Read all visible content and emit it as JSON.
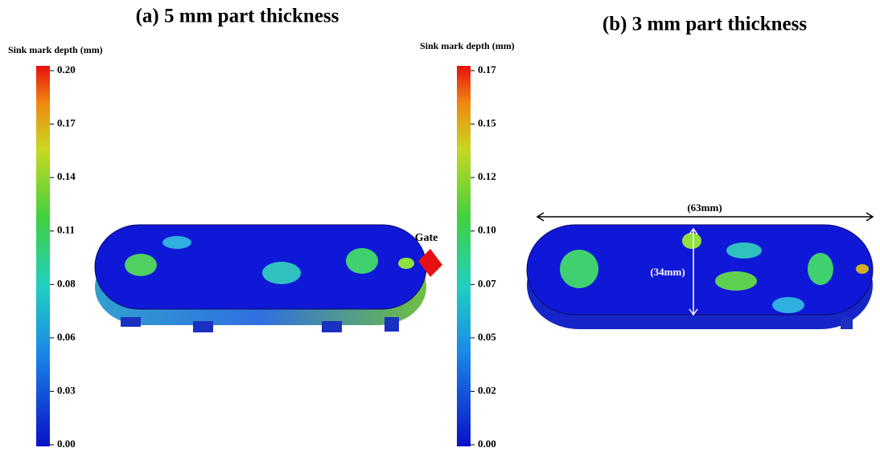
{
  "panels": [
    {
      "title": "(a) 5 mm part thickness",
      "colorbar_label": "Sink mark depth (mm)",
      "colorbar_ticks": [
        "0.20",
        "0.17",
        "0.14",
        "0.11",
        "0.08",
        "0.06",
        "0.03",
        "0.00"
      ],
      "annotations": [
        "Gate"
      ]
    },
    {
      "title": "(b) 3 mm part thickness",
      "colorbar_label": "Sink mark depth (mm)",
      "colorbar_ticks": [
        "0.17",
        "0.15",
        "0.12",
        "0.10",
        "0.07",
        "0.05",
        "0.02",
        "0.00"
      ],
      "annotations": [
        "(63mm)",
        "(34mm)"
      ]
    }
  ]
}
